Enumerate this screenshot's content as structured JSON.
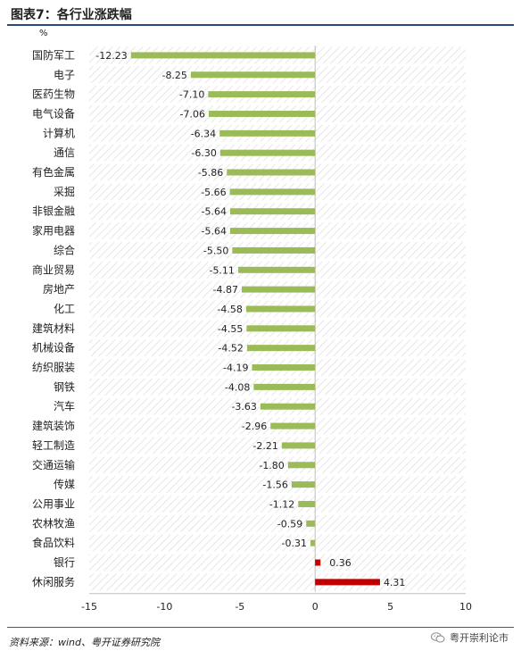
{
  "header": {
    "title": "图表7：各行业涨跌幅"
  },
  "chart_data": {
    "type": "bar",
    "orientation": "horizontal",
    "title": "",
    "unit": "%",
    "categories": [
      "国防军工",
      "电子",
      "医药生物",
      "电气设备",
      "计算机",
      "通信",
      "有色金属",
      "采掘",
      "非银金融",
      "家用电器",
      "综合",
      "商业贸易",
      "房地产",
      "化工",
      "建筑材料",
      "机械设备",
      "纺织服装",
      "钢铁",
      "汽车",
      "建筑装饰",
      "轻工制造",
      "交通运输",
      "传媒",
      "公用事业",
      "农林牧渔",
      "食品饮料",
      "银行",
      "休闲服务"
    ],
    "values": [
      -12.23,
      -8.25,
      -7.1,
      -7.06,
      -6.34,
      -6.3,
      -5.86,
      -5.66,
      -5.64,
      -5.64,
      -5.5,
      -5.11,
      -4.87,
      -4.58,
      -4.55,
      -4.52,
      -4.19,
      -4.08,
      -3.63,
      -2.96,
      -2.21,
      -1.8,
      -1.56,
      -1.12,
      -0.59,
      -0.31,
      0.36,
      4.31
    ],
    "value_labels": [
      "-12.23",
      "-8.25",
      "-7.10",
      "-7.06",
      "-6.34",
      "-6.30",
      "-5.86",
      "-5.66",
      "-5.64",
      "-5.64",
      "-5.50",
      "-5.11",
      "-4.87",
      "-4.58",
      "-4.55",
      "-4.52",
      "-4.19",
      "-4.08",
      "-3.63",
      "-2.96",
      "-2.21",
      "-1.80",
      "-1.56",
      "-1.12",
      "-0.59",
      "-0.31",
      "0.36",
      "4.31"
    ],
    "xlim": [
      -15,
      10
    ],
    "xticks": [
      -15,
      -10,
      -5,
      0,
      5,
      10
    ],
    "tick_labels": [
      "-15",
      "-10",
      "-5",
      "0",
      "5",
      "10"
    ],
    "colors": {
      "negative": "#9bbb59",
      "positive": "#c00000",
      "hatch": "#d9d9d9",
      "grid": "#bfbfbf"
    }
  },
  "footer": {
    "source": "资料来源：wind、粤开证券研究院",
    "watermark": "粤开崇利论市",
    "watermark_icon": "wechat-icon"
  }
}
